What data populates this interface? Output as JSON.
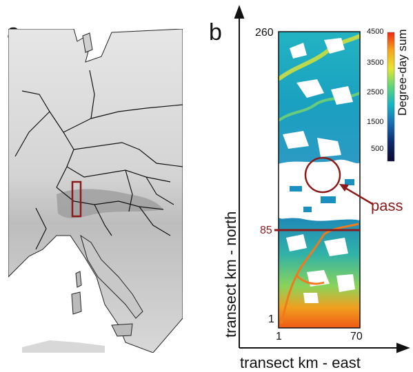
{
  "panels": {
    "a": {
      "letter": "a"
    },
    "b": {
      "letter": "b"
    }
  },
  "axes": {
    "xlabel": "transect km - east",
    "ylabel": "transect km - north",
    "y_ticks": {
      "top": "260",
      "bottom": "1"
    },
    "x_ticks": {
      "left": "1",
      "right": "70"
    },
    "marker_85": "85"
  },
  "annotation": {
    "pass": "pass"
  },
  "colorbar": {
    "title": "Degree-day sum",
    "ticks": [
      "4500",
      "3500",
      "2500",
      "1500",
      "500"
    ],
    "gradient": [
      "#f0280f",
      "#f5a61c",
      "#e6e632",
      "#5fd67a",
      "#16b5c1",
      "#1a70b5",
      "#0e2a6e",
      "#0a0a2e"
    ]
  },
  "colors": {
    "highlight": "#8b1a1a"
  }
}
